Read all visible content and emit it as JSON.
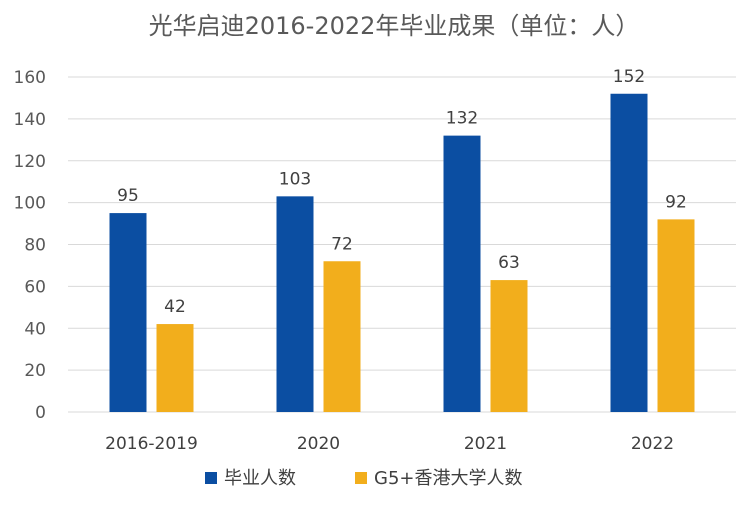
{
  "chart_data": {
    "type": "bar",
    "title": "光华启迪2016-2022年毕业成果（单位：人）",
    "categories": [
      "2016-2019",
      "2020",
      "2021",
      "2022"
    ],
    "series": [
      {
        "name": "毕业人数",
        "color": "#0b4ea2",
        "values": [
          95,
          103,
          132,
          152
        ]
      },
      {
        "name": "G5+香港大学人数",
        "color": "#f2ae1c",
        "values": [
          42,
          72,
          63,
          92
        ]
      }
    ],
    "xlabel": "",
    "ylabel": "",
    "ylim": [
      0,
      160
    ],
    "yticks": [
      0,
      20,
      40,
      60,
      80,
      100,
      120,
      140,
      160
    ],
    "grid": true,
    "legend": "bottom"
  }
}
